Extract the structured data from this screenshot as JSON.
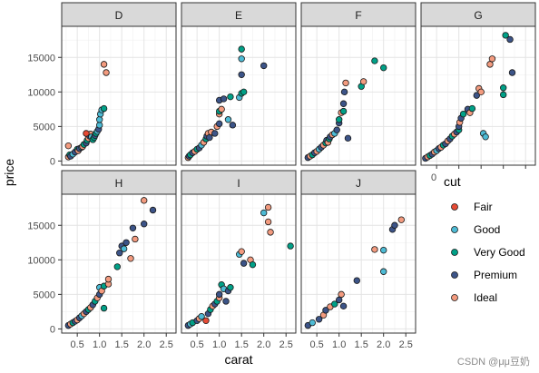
{
  "chart_data": {
    "type": "scatter",
    "facet_by": "color",
    "xlabel": "carat",
    "ylabel": "price",
    "xlim": [
      0.15,
      2.72
    ],
    "ylim": [
      -600,
      19500
    ],
    "x_ticks": [
      0.5,
      1.0,
      1.5,
      2.0,
      2.5
    ],
    "x_tick_labels": [
      "0.5",
      "1.0",
      "1.5",
      "2.0",
      "2.5"
    ],
    "y_ticks": [
      0,
      5000,
      10000,
      15000
    ],
    "y_tick_labels": [
      "0",
      "5000",
      "10000",
      "15000"
    ],
    "grid": true,
    "panel_label_orphan": "0",
    "legend": {
      "title": "cut",
      "position": "right",
      "entries": [
        "Fair",
        "Good",
        "Very Good",
        "Premium",
        "Ideal"
      ]
    },
    "cut_colors": {
      "Fair": "#E64B35",
      "Good": "#4DBBD5",
      "Very Good": "#00A087",
      "Premium": "#3C5488",
      "Ideal": "#F39B7F"
    },
    "panels": [
      {
        "label": "D",
        "points": [
          [
            0.3,
            600,
            "Ideal"
          ],
          [
            0.33,
            900,
            "Very Good"
          ],
          [
            0.35,
            700,
            "Premium"
          ],
          [
            0.4,
            1000,
            "Good"
          ],
          [
            0.45,
            1300,
            "Premium"
          ],
          [
            0.5,
            1700,
            "Very Good"
          ],
          [
            0.52,
            1500,
            "Ideal"
          ],
          [
            0.55,
            1800,
            "Premium"
          ],
          [
            0.6,
            2000,
            "Good"
          ],
          [
            0.3,
            2200,
            "Ideal"
          ],
          [
            0.62,
            2100,
            "Ideal"
          ],
          [
            0.65,
            2400,
            "Very Good"
          ],
          [
            0.7,
            2600,
            "Premium"
          ],
          [
            0.72,
            3000,
            "Very Good"
          ],
          [
            0.75,
            3300,
            "Ideal"
          ],
          [
            0.78,
            3600,
            "Premium"
          ],
          [
            0.8,
            3900,
            "Ideal"
          ],
          [
            0.82,
            3500,
            "Good"
          ],
          [
            0.85,
            3100,
            "Very Good"
          ],
          [
            0.88,
            3400,
            "Very Good"
          ],
          [
            0.9,
            3700,
            "Premium"
          ],
          [
            0.92,
            4000,
            "Very Good"
          ],
          [
            0.95,
            4300,
            "Good"
          ],
          [
            0.98,
            4600,
            "Premium"
          ],
          [
            1.0,
            5200,
            "Good"
          ],
          [
            1.0,
            6000,
            "Good"
          ],
          [
            1.02,
            6800,
            "Good"
          ],
          [
            1.05,
            7400,
            "Good"
          ],
          [
            1.1,
            7600,
            "Very Good"
          ],
          [
            1.1,
            14000,
            "Ideal"
          ],
          [
            1.15,
            12800,
            "Ideal"
          ],
          [
            0.7,
            4000,
            "Fair"
          ]
        ]
      },
      {
        "label": "E",
        "points": [
          [
            0.3,
            500,
            "Ideal"
          ],
          [
            0.32,
            700,
            "Premium"
          ],
          [
            0.35,
            900,
            "Very Good"
          ],
          [
            0.4,
            1200,
            "Premium"
          ],
          [
            0.45,
            1400,
            "Ideal"
          ],
          [
            0.5,
            1700,
            "Very Good"
          ],
          [
            0.55,
            1900,
            "Premium"
          ],
          [
            0.6,
            2300,
            "Good"
          ],
          [
            0.65,
            2700,
            "Ideal"
          ],
          [
            0.7,
            3200,
            "Very Good"
          ],
          [
            0.72,
            3600,
            "Premium"
          ],
          [
            0.75,
            4000,
            "Ideal"
          ],
          [
            0.78,
            3400,
            "Premium"
          ],
          [
            0.82,
            4200,
            "Ideal"
          ],
          [
            0.9,
            4000,
            "Premium"
          ],
          [
            0.95,
            5000,
            "Ideal"
          ],
          [
            1.0,
            5400,
            "Premium"
          ],
          [
            1.0,
            6800,
            "Ideal"
          ],
          [
            1.0,
            7200,
            "Very Good"
          ],
          [
            1.0,
            8800,
            "Premium"
          ],
          [
            1.05,
            7500,
            "Ideal"
          ],
          [
            1.1,
            9000,
            "Premium"
          ],
          [
            1.2,
            6000,
            "Good"
          ],
          [
            1.25,
            9300,
            "Very Good"
          ],
          [
            1.3,
            5200,
            "Premium"
          ],
          [
            1.45,
            9200,
            "Good"
          ],
          [
            1.5,
            9800,
            "Very Good"
          ],
          [
            1.55,
            10000,
            "Very Good"
          ],
          [
            1.5,
            12500,
            "Premium"
          ],
          [
            1.5,
            14800,
            "Good"
          ],
          [
            1.5,
            16200,
            "Very Good"
          ],
          [
            2.0,
            13800,
            "Premium"
          ]
        ]
      },
      {
        "label": "F",
        "points": [
          [
            0.3,
            500,
            "Premium"
          ],
          [
            0.35,
            700,
            "Ideal"
          ],
          [
            0.4,
            900,
            "Very Good"
          ],
          [
            0.45,
            1200,
            "Premium"
          ],
          [
            0.5,
            1400,
            "Ideal"
          ],
          [
            0.55,
            1700,
            "Good"
          ],
          [
            0.6,
            2000,
            "Premium"
          ],
          [
            0.65,
            2300,
            "Ideal"
          ],
          [
            0.7,
            2600,
            "Very Good"
          ],
          [
            0.72,
            3000,
            "Premium"
          ],
          [
            0.75,
            2700,
            "Ideal"
          ],
          [
            0.78,
            3200,
            "Very Good"
          ],
          [
            0.8,
            3500,
            "Premium"
          ],
          [
            0.85,
            3800,
            "Ideal"
          ],
          [
            0.9,
            4000,
            "Good"
          ],
          [
            0.95,
            4500,
            "Premium"
          ],
          [
            1.0,
            5500,
            "Premium"
          ],
          [
            1.0,
            6000,
            "Very Good"
          ],
          [
            1.05,
            7000,
            "Ideal"
          ],
          [
            1.1,
            7200,
            "Very Good"
          ],
          [
            1.1,
            8300,
            "Premium"
          ],
          [
            1.12,
            10000,
            "Premium"
          ],
          [
            1.15,
            11300,
            "Ideal"
          ],
          [
            1.2,
            3300,
            "Premium"
          ],
          [
            1.5,
            10800,
            "Very Good"
          ],
          [
            1.55,
            11500,
            "Ideal"
          ],
          [
            1.8,
            14500,
            "Very Good"
          ],
          [
            2.0,
            13500,
            "Very Good"
          ]
        ]
      },
      {
        "label": "G",
        "points": [
          [
            0.25,
            400,
            "Premium"
          ],
          [
            0.3,
            600,
            "Ideal"
          ],
          [
            0.35,
            800,
            "Very Good"
          ],
          [
            0.4,
            1000,
            "Premium"
          ],
          [
            0.45,
            1300,
            "Ideal"
          ],
          [
            0.5,
            1500,
            "Good"
          ],
          [
            0.55,
            1800,
            "Premium"
          ],
          [
            0.6,
            2000,
            "Ideal"
          ],
          [
            0.65,
            2300,
            "Very Good"
          ],
          [
            0.7,
            2500,
            "Premium"
          ],
          [
            0.75,
            2900,
            "Ideal"
          ],
          [
            0.8,
            3200,
            "Premium"
          ],
          [
            0.85,
            3600,
            "Very Good"
          ],
          [
            0.9,
            3900,
            "Ideal"
          ],
          [
            0.95,
            4200,
            "Premium"
          ],
          [
            1.0,
            4500,
            "Very Good"
          ],
          [
            1.0,
            5000,
            "Premium"
          ],
          [
            1.02,
            5600,
            "Ideal"
          ],
          [
            1.05,
            6200,
            "Premium"
          ],
          [
            1.1,
            6800,
            "Very Good"
          ],
          [
            1.2,
            7500,
            "Premium"
          ],
          [
            1.25,
            7000,
            "Ideal"
          ],
          [
            1.3,
            7600,
            "Very Good"
          ],
          [
            1.4,
            9500,
            "Premium"
          ],
          [
            1.45,
            10500,
            "Ideal"
          ],
          [
            1.5,
            10000,
            "Ideal"
          ],
          [
            1.55,
            4000,
            "Good"
          ],
          [
            1.6,
            3500,
            "Good"
          ],
          [
            1.7,
            14000,
            "Ideal"
          ],
          [
            1.75,
            14800,
            "Ideal"
          ],
          [
            2.0,
            9600,
            "Very Good"
          ],
          [
            2.0,
            10600,
            "Very Good"
          ],
          [
            2.05,
            18200,
            "Very Good"
          ],
          [
            2.15,
            17600,
            "Premium"
          ],
          [
            2.2,
            12800,
            "Premium"
          ]
        ]
      },
      {
        "label": "H",
        "points": [
          [
            0.3,
            500,
            "Premium"
          ],
          [
            0.35,
            700,
            "Ideal"
          ],
          [
            0.4,
            900,
            "Very Good"
          ],
          [
            0.45,
            1100,
            "Premium"
          ],
          [
            0.5,
            1300,
            "Ideal"
          ],
          [
            0.55,
            1600,
            "Premium"
          ],
          [
            0.6,
            1900,
            "Good"
          ],
          [
            0.65,
            2200,
            "Ideal"
          ],
          [
            0.7,
            2500,
            "Premium"
          ],
          [
            0.75,
            2800,
            "Very Good"
          ],
          [
            0.8,
            3100,
            "Ideal"
          ],
          [
            0.85,
            3500,
            "Premium"
          ],
          [
            0.9,
            4000,
            "Very Good"
          ],
          [
            0.95,
            4500,
            "Ideal"
          ],
          [
            1.0,
            5000,
            "Premium"
          ],
          [
            1.0,
            6000,
            "Good"
          ],
          [
            1.05,
            5500,
            "Ideal"
          ],
          [
            1.1,
            3000,
            "Very Good"
          ],
          [
            1.1,
            6200,
            "Very Good"
          ],
          [
            1.2,
            6500,
            "Ideal"
          ],
          [
            1.2,
            7200,
            "Ideal"
          ],
          [
            1.4,
            9000,
            "Very Good"
          ],
          [
            1.45,
            11000,
            "Premium"
          ],
          [
            1.5,
            12000,
            "Premium"
          ],
          [
            1.55,
            11600,
            "Good"
          ],
          [
            1.6,
            12500,
            "Premium"
          ],
          [
            1.7,
            10200,
            "Ideal"
          ],
          [
            1.75,
            14600,
            "Premium"
          ],
          [
            1.8,
            13000,
            "Ideal"
          ],
          [
            2.0,
            15200,
            "Premium"
          ],
          [
            2.0,
            18600,
            "Ideal"
          ],
          [
            2.2,
            17200,
            "Premium"
          ]
        ]
      },
      {
        "label": "I",
        "points": [
          [
            0.3,
            500,
            "Premium"
          ],
          [
            0.35,
            700,
            "Good"
          ],
          [
            0.4,
            900,
            "Very Good"
          ],
          [
            0.5,
            1200,
            "Premium"
          ],
          [
            0.55,
            1500,
            "Ideal"
          ],
          [
            0.6,
            1800,
            "Good"
          ],
          [
            0.7,
            1200,
            "Fair"
          ],
          [
            0.75,
            2200,
            "Premium"
          ],
          [
            0.8,
            2800,
            "Very Good"
          ],
          [
            0.85,
            3300,
            "Ideal"
          ],
          [
            0.9,
            3600,
            "Premium"
          ],
          [
            0.95,
            4000,
            "Very Good"
          ],
          [
            1.0,
            4500,
            "Ideal"
          ],
          [
            1.0,
            5000,
            "Premium"
          ],
          [
            1.05,
            6400,
            "Very Good"
          ],
          [
            1.1,
            5800,
            "Good"
          ],
          [
            1.15,
            4000,
            "Premium"
          ],
          [
            1.2,
            5500,
            "Premium"
          ],
          [
            1.25,
            6000,
            "Very Good"
          ],
          [
            1.45,
            10800,
            "Good"
          ],
          [
            1.5,
            11200,
            "Ideal"
          ],
          [
            1.55,
            9500,
            "Premium"
          ],
          [
            1.7,
            10000,
            "Ideal"
          ],
          [
            1.75,
            9300,
            "Very Good"
          ],
          [
            2.0,
            16800,
            "Good"
          ],
          [
            2.1,
            17600,
            "Ideal"
          ],
          [
            2.1,
            15500,
            "Ideal"
          ],
          [
            2.15,
            14000,
            "Ideal"
          ],
          [
            2.6,
            12000,
            "Very Good"
          ]
        ]
      },
      {
        "label": "J",
        "points": [
          [
            0.3,
            500,
            "Premium"
          ],
          [
            0.4,
            900,
            "Good"
          ],
          [
            0.55,
            1400,
            "Premium"
          ],
          [
            0.65,
            2000,
            "Ideal"
          ],
          [
            0.7,
            2700,
            "Premium"
          ],
          [
            0.8,
            3200,
            "Ideal"
          ],
          [
            0.9,
            3600,
            "Very Good"
          ],
          [
            1.0,
            4200,
            "Premium"
          ],
          [
            1.05,
            5000,
            "Ideal"
          ],
          [
            1.1,
            3300,
            "Premium"
          ],
          [
            1.4,
            7000,
            "Premium"
          ],
          [
            1.8,
            11500,
            "Ideal"
          ],
          [
            2.0,
            8300,
            "Good"
          ],
          [
            2.0,
            11400,
            "Good"
          ],
          [
            2.2,
            14400,
            "Premium"
          ],
          [
            2.25,
            15000,
            "Premium"
          ],
          [
            2.4,
            15800,
            "Ideal"
          ]
        ]
      }
    ]
  },
  "watermark": "CSDN @μμ豆奶"
}
